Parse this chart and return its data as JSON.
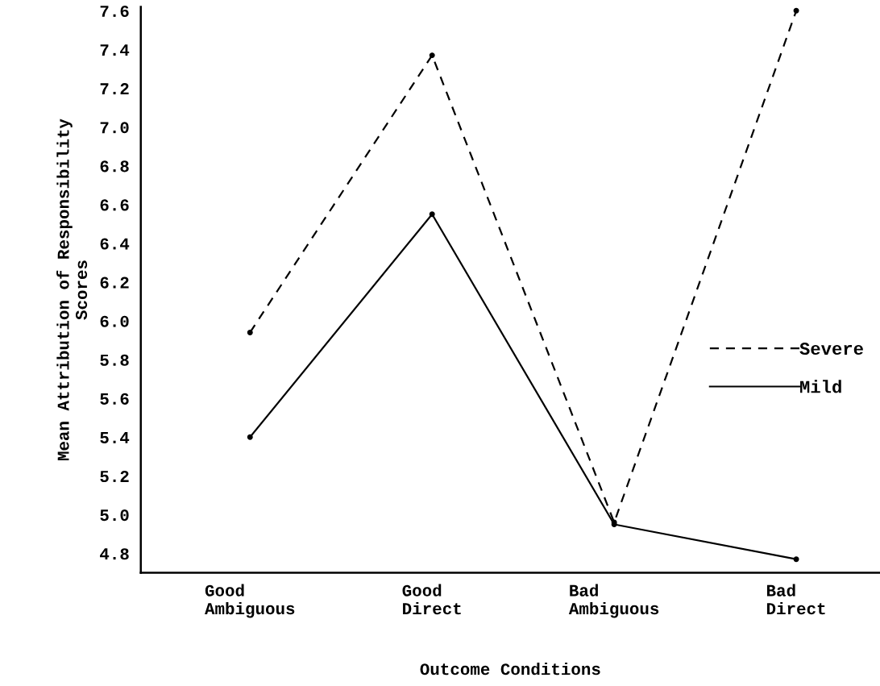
{
  "chart_data": {
    "type": "line",
    "xlabel": "Outcome Conditions",
    "ylabel": "Mean Attribution of Responsibility\nScores",
    "categories": [
      "Good\nAmbiguous",
      "Good\nDirect",
      "Bad\nAmbiguous",
      "Bad\nDirect"
    ],
    "series": [
      {
        "name": "Severe",
        "color": "#000000",
        "line_style": "dashed",
        "values": [
          5.94,
          7.37,
          4.96,
          7.6
        ]
      },
      {
        "name": "Mild",
        "color": "#000000",
        "line_style": "solid",
        "values": [
          5.4,
          6.55,
          4.95,
          4.77
        ]
      }
    ],
    "ylim": [
      4.7,
      7.62
    ],
    "yticks": [
      4.8,
      {
        "value": 5,
        "label": "5.0"
      },
      5.2,
      5.4,
      5.6,
      5.8,
      {
        "value": 6,
        "label": "6.0"
      },
      6.2,
      6.4,
      6.6,
      6.8,
      {
        "value": 7,
        "label": "7.0"
      },
      7.2,
      7.4,
      7.6
    ],
    "marker": "circle",
    "grid": false,
    "legend": "right"
  }
}
